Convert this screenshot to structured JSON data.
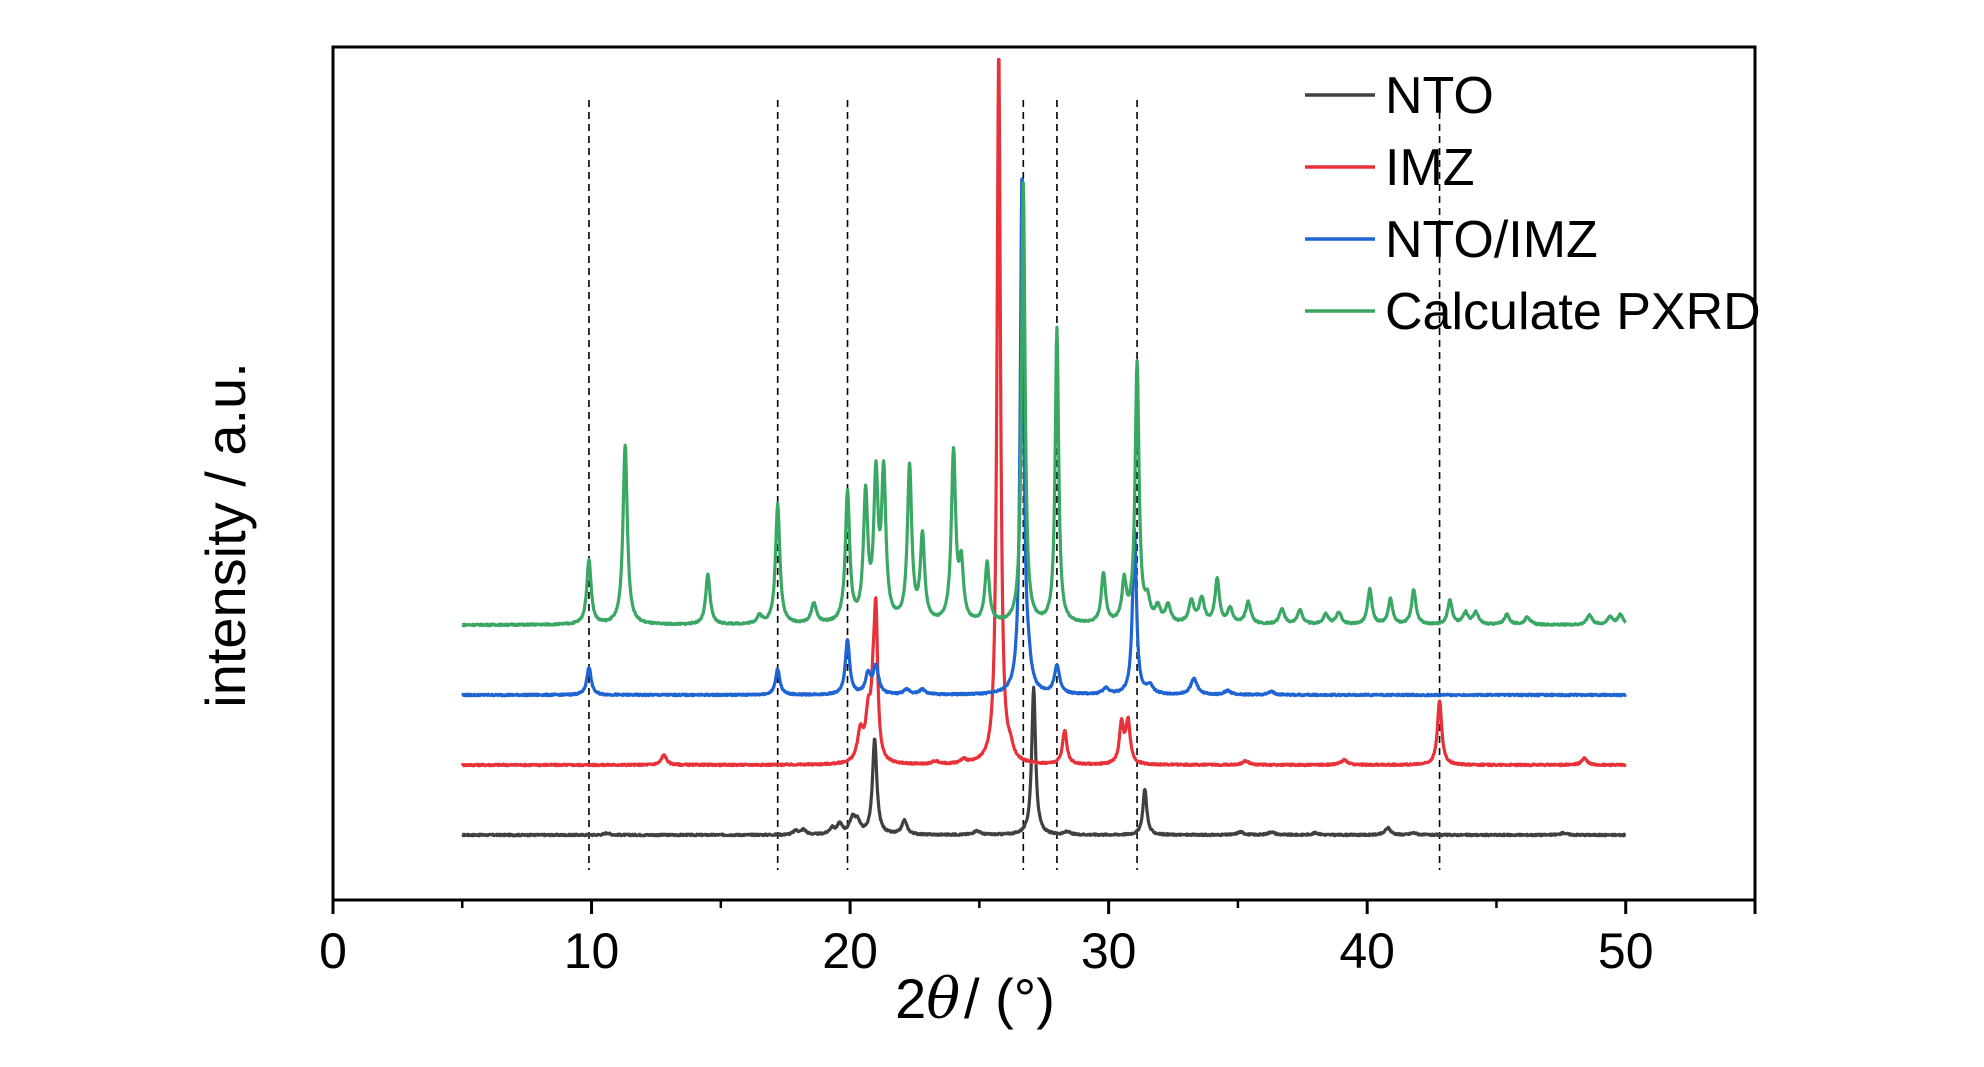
{
  "chart_data": {
    "type": "line",
    "title": "",
    "xlabel_prefix": "2",
    "xlabel_symbol": "θ",
    "xlabel_suffix": "/ (°)",
    "ylabel": "intensity / a.u.",
    "xlim": [
      0,
      55
    ],
    "xticks": [
      0,
      10,
      20,
      30,
      40,
      50
    ],
    "xtick_labels": [
      "0",
      "10",
      "20",
      "30",
      "40",
      "50"
    ],
    "y_ticks_shown": false,
    "grid": false,
    "legend_position": "top-right",
    "reference_lines_x": [
      9.9,
      17.2,
      19.9,
      26.7,
      28.0,
      31.1,
      42.8
    ],
    "series": [
      {
        "name": "NTO",
        "color": "#404040",
        "offset": 0,
        "x_range": [
          5,
          50
        ],
        "baseline": 0,
        "peaks": [
          [
            10.6,
            2,
            0.12
          ],
          [
            17.9,
            4,
            0.12
          ],
          [
            18.2,
            5,
            0.12
          ],
          [
            19.3,
            6,
            0.12
          ],
          [
            19.6,
            10,
            0.12
          ],
          [
            20.1,
            16,
            0.14
          ],
          [
            20.3,
            10,
            0.12
          ],
          [
            20.95,
            95,
            0.1
          ],
          [
            22.1,
            14,
            0.12
          ],
          [
            24.9,
            4,
            0.15
          ],
          [
            27.1,
            147,
            0.09
          ],
          [
            28.4,
            3,
            0.12
          ],
          [
            31.4,
            46,
            0.09
          ],
          [
            35.1,
            3,
            0.15
          ],
          [
            36.3,
            3,
            0.15
          ],
          [
            38.0,
            2,
            0.15
          ],
          [
            40.8,
            7,
            0.13
          ],
          [
            41.8,
            2,
            0.15
          ],
          [
            47.6,
            2,
            0.15
          ]
        ]
      },
      {
        "name": "IMZ",
        "color": "#e8323a",
        "offset": 70,
        "x_range": [
          5,
          50
        ],
        "baseline": 0,
        "peaks": [
          [
            12.8,
            10,
            0.12
          ],
          [
            20.4,
            30,
            0.14
          ],
          [
            20.7,
            42,
            0.12
          ],
          [
            20.9,
            58,
            0.1
          ],
          [
            21.0,
            130,
            0.08
          ],
          [
            23.3,
            3,
            0.15
          ],
          [
            24.4,
            4,
            0.15
          ],
          [
            25.75,
            715,
            0.08
          ],
          [
            26.2,
            10,
            0.12
          ],
          [
            28.3,
            34,
            0.1
          ],
          [
            30.5,
            40,
            0.1
          ],
          [
            30.75,
            42,
            0.1
          ],
          [
            35.3,
            4,
            0.15
          ],
          [
            39.1,
            5,
            0.15
          ],
          [
            42.8,
            64,
            0.1
          ],
          [
            48.4,
            7,
            0.12
          ]
        ]
      },
      {
        "name": "NTO/IMZ",
        "color": "#1e64d2",
        "offset": 140,
        "x_range": [
          5,
          50
        ],
        "baseline": 0,
        "peaks": [
          [
            9.9,
            28,
            0.1
          ],
          [
            17.2,
            26,
            0.1
          ],
          [
            19.9,
            55,
            0.1
          ],
          [
            20.7,
            20,
            0.12
          ],
          [
            21.0,
            28,
            0.12
          ],
          [
            22.2,
            5,
            0.15
          ],
          [
            22.8,
            5,
            0.15
          ],
          [
            26.65,
            520,
            0.08
          ],
          [
            26.9,
            18,
            0.12
          ],
          [
            28.0,
            28,
            0.12
          ],
          [
            29.9,
            6,
            0.15
          ],
          [
            31.0,
            165,
            0.09
          ],
          [
            31.6,
            8,
            0.15
          ],
          [
            33.3,
            16,
            0.15
          ],
          [
            34.6,
            4,
            0.15
          ],
          [
            36.3,
            3,
            0.15
          ]
        ]
      },
      {
        "name": "Calculate PXRD",
        "color": "#3aa864",
        "offset": 210,
        "x_range": [
          5,
          50
        ],
        "baseline": 0,
        "peaks": [
          [
            9.9,
            65,
            0.1
          ],
          [
            11.3,
            180,
            0.1
          ],
          [
            14.5,
            50,
            0.1
          ],
          [
            16.5,
            8,
            0.12
          ],
          [
            17.2,
            120,
            0.1
          ],
          [
            18.6,
            20,
            0.12
          ],
          [
            19.9,
            130,
            0.1
          ],
          [
            20.6,
            125,
            0.1
          ],
          [
            21.0,
            140,
            0.1
          ],
          [
            21.3,
            145,
            0.1
          ],
          [
            22.3,
            155,
            0.1
          ],
          [
            22.8,
            85,
            0.1
          ],
          [
            24.0,
            170,
            0.1
          ],
          [
            24.3,
            55,
            0.1
          ],
          [
            25.3,
            60,
            0.1
          ],
          [
            26.7,
            440,
            0.08
          ],
          [
            28.0,
            295,
            0.08
          ],
          [
            29.8,
            50,
            0.1
          ],
          [
            30.6,
            40,
            0.1
          ],
          [
            31.1,
            260,
            0.09
          ],
          [
            31.5,
            20,
            0.12
          ],
          [
            31.9,
            15,
            0.12
          ],
          [
            32.3,
            18,
            0.12
          ],
          [
            33.2,
            22,
            0.12
          ],
          [
            33.6,
            25,
            0.12
          ],
          [
            34.2,
            45,
            0.1
          ],
          [
            34.7,
            15,
            0.12
          ],
          [
            35.4,
            22,
            0.12
          ],
          [
            36.7,
            15,
            0.12
          ],
          [
            37.4,
            14,
            0.12
          ],
          [
            38.4,
            10,
            0.12
          ],
          [
            38.9,
            12,
            0.12
          ],
          [
            40.1,
            35,
            0.1
          ],
          [
            40.9,
            25,
            0.1
          ],
          [
            41.8,
            35,
            0.1
          ],
          [
            43.2,
            25,
            0.1
          ],
          [
            43.8,
            12,
            0.12
          ],
          [
            44.2,
            12,
            0.12
          ],
          [
            45.4,
            10,
            0.12
          ],
          [
            46.2,
            8,
            0.12
          ],
          [
            48.6,
            10,
            0.12
          ],
          [
            49.4,
            8,
            0.12
          ],
          [
            49.8,
            10,
            0.12
          ]
        ]
      }
    ]
  }
}
